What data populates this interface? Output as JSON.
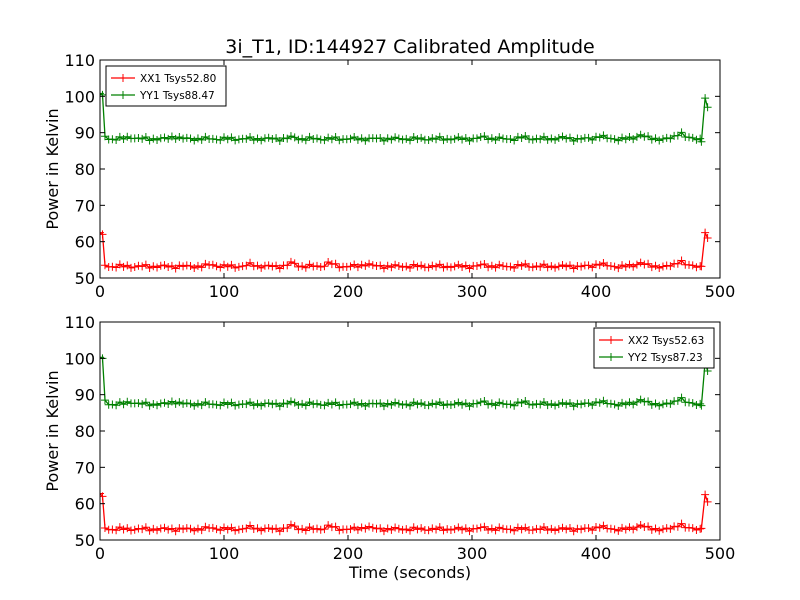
{
  "figure_title": "3i_T1, ID:144927 Calibrated Amplitude",
  "chart_data": [
    {
      "type": "line",
      "title": "3i_T1, ID:144927 Calibrated Amplitude",
      "xlabel": "",
      "ylabel": "Power in Kelvin",
      "xlim": [
        0,
        500
      ],
      "ylim": [
        50,
        110
      ],
      "xticks": [
        0,
        100,
        200,
        300,
        400,
        500
      ],
      "yticks": [
        50,
        60,
        70,
        80,
        90,
        100,
        110
      ],
      "grid": false,
      "legend_position": "top-left",
      "series": [
        {
          "name": "XX1 Tsys52.80",
          "color": "#ff0000",
          "base": 53.2,
          "start": [
            [
              0,
              62.5
            ],
            [
              2,
              62.0
            ],
            [
              4,
              53.5
            ]
          ],
          "end": [
            [
              485,
              53.2
            ],
            [
              488,
              62.5
            ],
            [
              490,
              61.0
            ]
          ],
          "bumps": [
            [
              90,
              0.5
            ],
            [
              122,
              0.5
            ],
            [
              155,
              0.9
            ],
            [
              185,
              0.9
            ],
            [
              215,
              0.7
            ],
            [
              310,
              0.4
            ],
            [
              342,
              0.3
            ],
            [
              403,
              0.8
            ],
            [
              436,
              1.1
            ],
            [
              468,
              1.6
            ]
          ]
        },
        {
          "name": "YY1 Tsys88.47",
          "color": "#008000",
          "base": 88.3,
          "start": [
            [
              0,
              100.8
            ],
            [
              2,
              100.4
            ],
            [
              4,
              89.0
            ]
          ],
          "end": [
            [
              485,
              87.5
            ],
            [
              488,
              99.5
            ],
            [
              490,
              97.0
            ]
          ],
          "bumps": [
            [
              25,
              0.5
            ],
            [
              60,
              0.6
            ],
            [
              155,
              0.4
            ],
            [
              310,
              0.5
            ],
            [
              342,
              0.4
            ],
            [
              372,
              0.3
            ],
            [
              403,
              0.8
            ],
            [
              436,
              1.2
            ],
            [
              468,
              1.8
            ]
          ]
        }
      ]
    },
    {
      "type": "line",
      "title": "",
      "xlabel": "Time (seconds)",
      "ylabel": "Power in Kelvin",
      "xlim": [
        0,
        500
      ],
      "ylim": [
        50,
        110
      ],
      "xticks": [
        0,
        100,
        200,
        300,
        400,
        500
      ],
      "yticks": [
        50,
        60,
        70,
        80,
        90,
        100,
        110
      ],
      "grid": false,
      "legend_position": "top-right",
      "series": [
        {
          "name": "XX2 Tsys52.63",
          "color": "#ff0000",
          "base": 53.0,
          "start": [
            [
              0,
              62.8
            ],
            [
              2,
              62.0
            ],
            [
              4,
              53.3
            ]
          ],
          "end": [
            [
              485,
              53.2
            ],
            [
              488,
              62.5
            ],
            [
              490,
              60.5
            ]
          ],
          "bumps": [
            [
              90,
              0.4
            ],
            [
              122,
              0.5
            ],
            [
              155,
              0.9
            ],
            [
              185,
              0.8
            ],
            [
              215,
              0.7
            ],
            [
              310,
              0.4
            ],
            [
              403,
              0.8
            ],
            [
              436,
              1.2
            ],
            [
              468,
              1.5
            ]
          ]
        },
        {
          "name": "YY2 Tsys87.23",
          "color": "#008000",
          "base": 87.4,
          "start": [
            [
              0,
              100.3
            ],
            [
              2,
              100.0
            ],
            [
              4,
              88.5
            ]
          ],
          "end": [
            [
              485,
              87.0
            ],
            [
              488,
              99.0
            ],
            [
              490,
              96.5
            ]
          ],
          "bumps": [
            [
              25,
              0.6
            ],
            [
              60,
              0.7
            ],
            [
              155,
              0.4
            ],
            [
              310,
              0.6
            ],
            [
              342,
              0.5
            ],
            [
              403,
              0.8
            ],
            [
              436,
              1.3
            ],
            [
              468,
              1.8
            ]
          ]
        }
      ]
    }
  ]
}
